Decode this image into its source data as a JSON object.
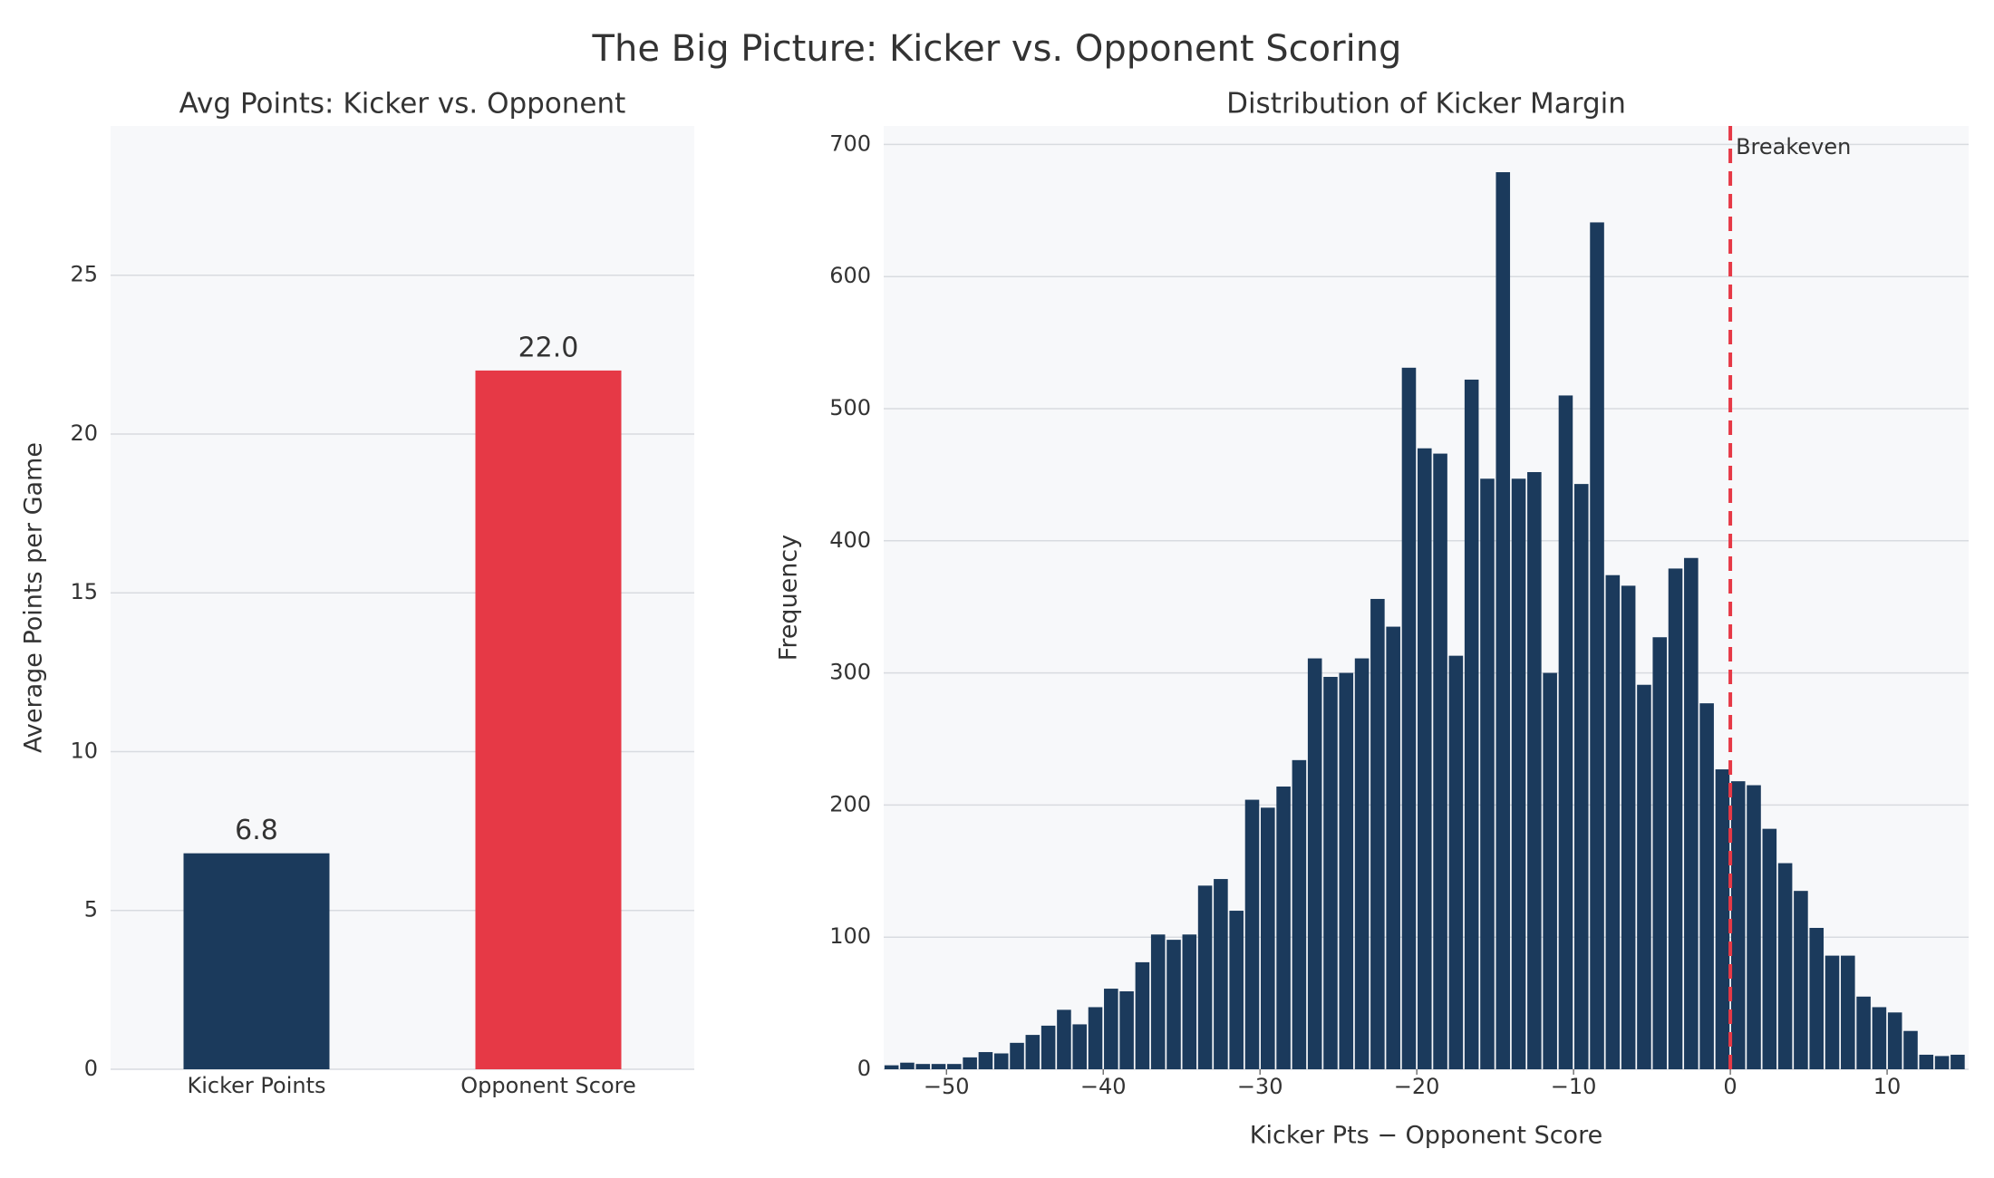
{
  "title": "The Big Picture: Kicker vs. Opponent Scoring",
  "chart_data": [
    {
      "type": "bar",
      "title": "Avg Points: Kicker vs. Opponent",
      "ylabel": "Average Points per Game",
      "categories": [
        "Kicker Points",
        "Opponent Score"
      ],
      "values": [
        6.8,
        22.0
      ],
      "value_labels": [
        "6.8",
        "22.0"
      ],
      "colors": [
        "#1b3a5c",
        "#e63946"
      ],
      "ylim": [
        0,
        29.7
      ],
      "yticks": [
        0,
        5,
        10,
        15,
        20,
        25
      ],
      "grid": true
    },
    {
      "type": "histogram",
      "title": "Distribution of Kicker Margin",
      "xlabel": "Kicker Pts − Opponent Score",
      "ylabel": "Frequency",
      "bins": [
        -54,
        -53,
        -52,
        -51,
        -50,
        -49,
        -48,
        -47,
        -46,
        -45,
        -44,
        -43,
        -42,
        -41,
        -40,
        -39,
        -38,
        -37,
        -36,
        -35,
        -34,
        -33,
        -32,
        -31,
        -30,
        -29,
        -28,
        -27,
        -26,
        -25,
        -24,
        -23,
        -22,
        -21,
        -20,
        -19,
        -18,
        -17,
        -16,
        -15,
        -14,
        -13,
        -12,
        -11,
        -10,
        -9,
        -8,
        -7,
        -6,
        -5,
        -4,
        -3,
        -2,
        -1,
        0,
        1,
        2,
        3,
        4,
        5,
        6,
        7,
        8,
        9,
        10,
        11,
        12,
        13,
        14,
        15
      ],
      "values": [
        3,
        5,
        4,
        4,
        4,
        9,
        13,
        12,
        20,
        26,
        33,
        45,
        34,
        47,
        61,
        59,
        81,
        102,
        98,
        102,
        139,
        144,
        120,
        204,
        198,
        214,
        234,
        311,
        297,
        300,
        311,
        356,
        335,
        531,
        470,
        466,
        313,
        522,
        447,
        679,
        447,
        452,
        300,
        510,
        443,
        641,
        374,
        366,
        291,
        327,
        379,
        387,
        277,
        227,
        218,
        215,
        182,
        156,
        135,
        107,
        86,
        86,
        55,
        47,
        43,
        29,
        11,
        10,
        11
      ],
      "color": "#1b3a5c",
      "xlim": [
        -54,
        15.2
      ],
      "ylim": [
        0,
        714
      ],
      "xticks": [
        {
          "value": -50,
          "label": "−50"
        },
        {
          "value": -40,
          "label": "−40"
        },
        {
          "value": -30,
          "label": "−30"
        },
        {
          "value": -20,
          "label": "−20"
        },
        {
          "value": -10,
          "label": "−10"
        },
        0,
        10
      ],
      "yticks": [
        0,
        100,
        200,
        300,
        400,
        500,
        600,
        700
      ],
      "grid": true,
      "vline": {
        "x": 0,
        "label": "Breakeven",
        "color": "#e63946"
      }
    }
  ]
}
